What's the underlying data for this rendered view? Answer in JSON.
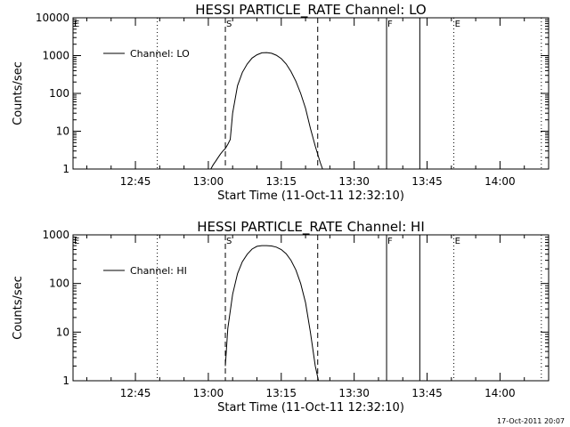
{
  "footer_timestamp": "17-Oct-2011 20:07",
  "chart_data": [
    {
      "type": "line",
      "title": "HESSI PARTICLE_RATE Channel: LO",
      "xlabel": "Start Time (11-Oct-11 12:32:10)",
      "ylabel": "Counts/sec",
      "yscale": "log",
      "ylim": [
        1,
        10000
      ],
      "yticks": [
        1,
        10,
        100,
        1000,
        10000
      ],
      "ytick_labels": [
        "1",
        "10",
        "100",
        "1000",
        "10000"
      ],
      "xlim": [
        "12:32:10",
        "14:10:00"
      ],
      "xticks": [
        "12:45",
        "13:00",
        "13:15",
        "13:30",
        "13:45",
        "14:00"
      ],
      "legend": {
        "position": "top-left",
        "entries": [
          "Channel: LO"
        ]
      },
      "series": [
        {
          "name": "Channel: LO",
          "x": [
            "13:00:30",
            "13:01:00",
            "13:01:30",
            "13:02:00",
            "13:02:30",
            "13:03:00",
            "13:03:30",
            "13:04:00",
            "13:04:30",
            "13:05:00",
            "13:06:00",
            "13:07:00",
            "13:08:00",
            "13:09:00",
            "13:10:00",
            "13:11:00",
            "13:12:00",
            "13:13:00",
            "13:14:00",
            "13:15:00",
            "13:16:00",
            "13:17:00",
            "13:18:00",
            "13:19:00",
            "13:20:00",
            "13:21:00",
            "13:22:00",
            "13:23:00",
            "13:23:30"
          ],
          "y": [
            1,
            1.3,
            1.6,
            2,
            2.5,
            3,
            3.5,
            4.5,
            6,
            30,
            160,
            360,
            600,
            860,
            1050,
            1180,
            1200,
            1150,
            1020,
            830,
            600,
            380,
            210,
            100,
            40,
            12,
            4,
            1.5,
            1
          ]
        }
      ],
      "markers": [
        {
          "time": "12:49:30",
          "style": "dotted",
          "label": ""
        },
        {
          "time": "13:03:30",
          "style": "dashed",
          "label": "S"
        },
        {
          "time": "13:22:30",
          "style": "dashed",
          "label": ""
        },
        {
          "time": "13:36:40",
          "style": "solid",
          "label": "F"
        },
        {
          "time": "13:43:30",
          "style": "solid",
          "label": ""
        },
        {
          "time": "13:50:30",
          "style": "dotted",
          "label": "E"
        },
        {
          "time": "14:08:30",
          "style": "dotted",
          "label": ""
        }
      ],
      "corner_label": "E"
    },
    {
      "type": "line",
      "title": "HESSI PARTICLE_RATE Channel: HI",
      "xlabel": "Start Time (11-Oct-11 12:32:10)",
      "ylabel": "Counts/sec",
      "yscale": "log",
      "ylim": [
        1,
        1000
      ],
      "yticks": [
        1,
        10,
        100,
        1000
      ],
      "ytick_labels": [
        "1",
        "10",
        "100",
        "1000"
      ],
      "xlim": [
        "12:32:10",
        "14:10:00"
      ],
      "xticks": [
        "12:45",
        "13:00",
        "13:15",
        "13:30",
        "13:45",
        "14:00"
      ],
      "legend": {
        "position": "top-left",
        "entries": [
          "Channel: HI"
        ]
      },
      "series": [
        {
          "name": "Channel: HI",
          "x": [
            "13:03:30",
            "13:04:00",
            "13:05:00",
            "13:06:00",
            "13:07:00",
            "13:08:00",
            "13:09:00",
            "13:10:00",
            "13:11:00",
            "13:12:00",
            "13:13:00",
            "13:14:00",
            "13:15:00",
            "13:16:00",
            "13:17:00",
            "13:18:00",
            "13:19:00",
            "13:20:00",
            "13:21:00",
            "13:22:00",
            "13:22:40"
          ],
          "y": [
            2,
            12,
            60,
            160,
            280,
            400,
            510,
            580,
            600,
            600,
            590,
            560,
            500,
            410,
            300,
            190,
            100,
            40,
            10,
            2,
            1
          ]
        }
      ],
      "markers": [
        {
          "time": "12:49:30",
          "style": "dotted",
          "label": ""
        },
        {
          "time": "13:03:30",
          "style": "dashed",
          "label": "S"
        },
        {
          "time": "13:22:30",
          "style": "dashed",
          "label": ""
        },
        {
          "time": "13:36:40",
          "style": "solid",
          "label": "F"
        },
        {
          "time": "13:43:30",
          "style": "solid",
          "label": ""
        },
        {
          "time": "13:50:30",
          "style": "dotted",
          "label": "E"
        },
        {
          "time": "14:08:30",
          "style": "dotted",
          "label": ""
        }
      ],
      "corner_label": "E"
    }
  ]
}
